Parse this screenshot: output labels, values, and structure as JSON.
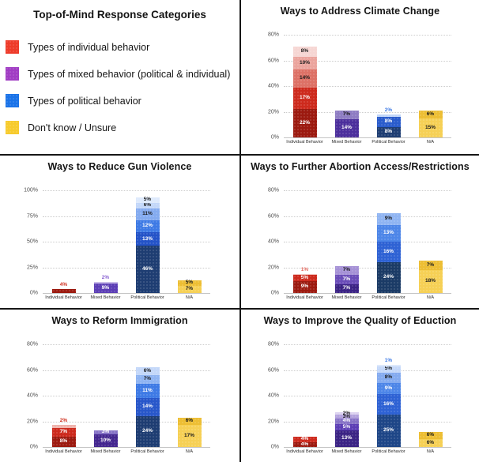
{
  "legend_panel": {
    "title": "Top-of-Mind Response Categories",
    "items": [
      {
        "name": "individual",
        "label": "Types of individual behavior",
        "color": "#EE3B2A"
      },
      {
        "name": "mixed",
        "label": "Types of mixed behavior (political & individual)",
        "color": "#A13DC4"
      },
      {
        "name": "political",
        "label": "Types of political behavior",
        "color": "#1A73E8"
      },
      {
        "name": "unsure",
        "label": "Don't know / Unsure",
        "color": "#F7CB2D"
      }
    ]
  },
  "chart_data": [
    {
      "type": "bar",
      "stacked": true,
      "title": "Ways to Address Climate Change",
      "ylim": [
        0,
        80
      ],
      "yticks": [
        0,
        20,
        40,
        60,
        80
      ],
      "categories": [
        "Individual Behavior",
        "Mixed Behavior",
        "Political Behavior",
        "N/A"
      ],
      "bars": [
        {
          "category": "Individual Behavior",
          "segments": [
            {
              "v": 22,
              "c": "#9C1A10"
            },
            {
              "v": 17,
              "c": "#CD2A1D"
            },
            {
              "v": 14,
              "c": "#DD7166"
            },
            {
              "v": 10,
              "c": "#EBA49D"
            },
            {
              "v": 8,
              "c": "#F6D6D3"
            }
          ]
        },
        {
          "category": "Mixed Behavior",
          "segments": [
            {
              "v": 14,
              "c": "#4C2F9C"
            },
            {
              "v": 7,
              "c": "#8E7CC3"
            }
          ]
        },
        {
          "category": "Political Behavior",
          "segments": [
            {
              "v": 8,
              "c": "#1E3D72"
            },
            {
              "v": 8,
              "c": "#2A5CCC"
            },
            {
              "v": 2,
              "c": "#BED4F8"
            }
          ],
          "top_label_outside": true,
          "top_label_color": "#3E7AE5"
        },
        {
          "category": "N/A",
          "segments": [
            {
              "v": 15,
              "c": "#F6D055"
            },
            {
              "v": 6,
              "c": "#EDBE33"
            }
          ]
        }
      ]
    },
    {
      "type": "bar",
      "stacked": true,
      "title": "Ways to Reduce Gun Violence",
      "ylim": [
        0,
        100
      ],
      "yticks": [
        0,
        25,
        50,
        75,
        100
      ],
      "categories": [
        "Individual Behavior",
        "Mixed Behavior",
        "Political Behavior",
        "N/A"
      ],
      "bars": [
        {
          "category": "Individual Behavior",
          "segments": [
            {
              "v": 4,
              "c": "#9C1A10"
            }
          ],
          "top_label_outside": true,
          "top_label_color": "#D0301F"
        },
        {
          "category": "Mixed Behavior",
          "segments": [
            {
              "v": 9,
              "c": "#5C3EB5"
            },
            {
              "v": 2,
              "c": "#C9BCE8"
            }
          ],
          "top_label_outside": true,
          "top_label_color": "#8A63D2"
        },
        {
          "category": "Political Behavior",
          "segments": [
            {
              "v": 46,
              "c": "#1E3D72"
            },
            {
              "v": 13,
              "c": "#2453C8"
            },
            {
              "v": 12,
              "c": "#3E7AE5"
            },
            {
              "v": 11,
              "c": "#84ABF0"
            },
            {
              "v": 6,
              "c": "#C3D7F9"
            },
            {
              "v": 5,
              "c": "#DDE9FC"
            }
          ]
        },
        {
          "category": "N/A",
          "segments": [
            {
              "v": 7,
              "c": "#F6D055"
            },
            {
              "v": 5,
              "c": "#EDBE33"
            }
          ]
        }
      ]
    },
    {
      "type": "bar",
      "stacked": true,
      "title": "Ways to Further Abortion Access/Restrictions",
      "ylim": [
        0,
        80
      ],
      "yticks": [
        0,
        20,
        40,
        60,
        80
      ],
      "categories": [
        "Individual Behavior",
        "Mixed Behavior",
        "Political Behavior",
        "N/A"
      ],
      "bars": [
        {
          "category": "Individual Behavior",
          "segments": [
            {
              "v": 9,
              "c": "#9C1A10"
            },
            {
              "v": 5,
              "c": "#CD2A1D"
            },
            {
              "v": 1,
              "c": "#F2C7C2"
            }
          ],
          "top_label_outside": true,
          "top_label_color": "#E2685E"
        },
        {
          "category": "Mixed Behavior",
          "segments": [
            {
              "v": 7,
              "c": "#3B2384"
            },
            {
              "v": 7,
              "c": "#6A4DB8"
            },
            {
              "v": 7,
              "c": "#A591D6"
            }
          ]
        },
        {
          "category": "Political Behavior",
          "segments": [
            {
              "v": 24,
              "c": "#1B3B66"
            },
            {
              "v": 16,
              "c": "#2E62D4"
            },
            {
              "v": 13,
              "c": "#4D86E8"
            },
            {
              "v": 9,
              "c": "#8FB4F2"
            }
          ]
        },
        {
          "category": "N/A",
          "segments": [
            {
              "v": 18,
              "c": "#F6D055"
            },
            {
              "v": 7,
              "c": "#EDBE33"
            }
          ]
        }
      ]
    },
    {
      "type": "bar",
      "stacked": true,
      "title": "Ways to Reform Immigration",
      "ylim": [
        0,
        80
      ],
      "yticks": [
        0,
        20,
        40,
        60,
        80
      ],
      "categories": [
        "Individual Behavior",
        "Mixed Behavior",
        "Political Behavior",
        "N/A"
      ],
      "bars": [
        {
          "category": "Individual Behavior",
          "segments": [
            {
              "v": 8,
              "c": "#9C1A10"
            },
            {
              "v": 7,
              "c": "#CD2A1D"
            },
            {
              "v": 2,
              "c": "#EFB3AC"
            }
          ],
          "top_label_outside": true,
          "top_label_color": "#D0301F"
        },
        {
          "category": "Mixed Behavior",
          "segments": [
            {
              "v": 10,
              "c": "#44278F"
            },
            {
              "v": 3,
              "c": "#8672C6"
            }
          ]
        },
        {
          "category": "Political Behavior",
          "segments": [
            {
              "v": 24,
              "c": "#1E3D72"
            },
            {
              "v": 14,
              "c": "#2857CA"
            },
            {
              "v": 11,
              "c": "#3E7AE5"
            },
            {
              "v": 7,
              "c": "#8FB4F2"
            },
            {
              "v": 6,
              "c": "#C3D7F9"
            }
          ]
        },
        {
          "category": "N/A",
          "segments": [
            {
              "v": 17,
              "c": "#F6D055"
            },
            {
              "v": 6,
              "c": "#EDBE33"
            }
          ]
        }
      ]
    },
    {
      "type": "bar",
      "stacked": true,
      "title": "Ways to Improve the Quality of Eduction",
      "ylim": [
        0,
        80
      ],
      "yticks": [
        0,
        20,
        40,
        60,
        80
      ],
      "categories": [
        "Individual Behavior",
        "Mixed Behavior",
        "Political Behavior",
        "N/A"
      ],
      "bars": [
        {
          "category": "Individual Behavior",
          "segments": [
            {
              "v": 4,
              "c": "#9C1A10"
            },
            {
              "v": 4,
              "c": "#CD2A1D"
            }
          ]
        },
        {
          "category": "Mixed Behavior",
          "segments": [
            {
              "v": 13,
              "c": "#3B2384"
            },
            {
              "v": 5,
              "c": "#5C3EB5"
            },
            {
              "v": 4,
              "c": "#8672C6"
            },
            {
              "v": 3,
              "c": "#B3A2DD"
            },
            {
              "v": 2,
              "c": "#DCD2F0"
            }
          ]
        },
        {
          "category": "Political Behavior",
          "segments": [
            {
              "v": 25,
              "c": "#1E4687"
            },
            {
              "v": 16,
              "c": "#2E62D4"
            },
            {
              "v": 9,
              "c": "#4D86E8"
            },
            {
              "v": 8,
              "c": "#84ABF0"
            },
            {
              "v": 5,
              "c": "#C3D7F9"
            },
            {
              "v": 1,
              "c": "#DDE9FC"
            }
          ],
          "top_label_outside": true,
          "top_label_color": "#3E7AE5"
        },
        {
          "category": "N/A",
          "segments": [
            {
              "v": 6,
              "c": "#F6D055"
            },
            {
              "v": 6,
              "c": "#EDBE33"
            }
          ]
        }
      ]
    }
  ]
}
